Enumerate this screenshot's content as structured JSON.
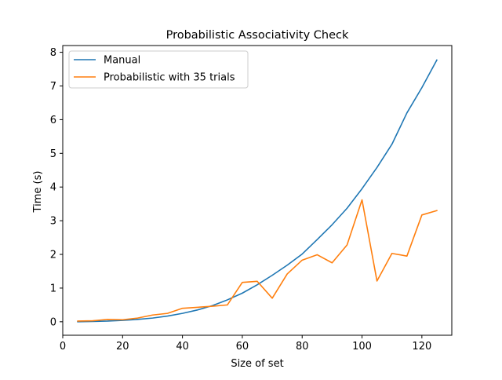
{
  "chart_data": {
    "type": "line",
    "title": "Probabilistic Associativity Check",
    "xlabel": "Size of set",
    "ylabel": "Time (s)",
    "xlim": [
      0,
      130
    ],
    "ylim": [
      -0.4,
      8.2
    ],
    "xticks": [
      0,
      20,
      40,
      60,
      80,
      100,
      120
    ],
    "yticks": [
      0,
      1,
      2,
      3,
      4,
      5,
      6,
      7,
      8
    ],
    "grid": false,
    "legend_position": "top-left",
    "x": [
      5,
      10,
      15,
      20,
      25,
      30,
      35,
      40,
      45,
      50,
      55,
      60,
      65,
      70,
      75,
      80,
      85,
      90,
      95,
      100,
      105,
      110,
      115,
      120,
      125
    ],
    "series": [
      {
        "name": "Manual",
        "color": "#1f77b4",
        "values": [
          0.0,
          0.01,
          0.02,
          0.04,
          0.07,
          0.11,
          0.17,
          0.25,
          0.35,
          0.48,
          0.65,
          0.85,
          1.1,
          1.38,
          1.68,
          2.01,
          2.44,
          2.88,
          3.37,
          3.95,
          4.58,
          5.27,
          6.2,
          6.95,
          7.77
        ]
      },
      {
        "name": "Probabilistic with 35 trials",
        "color": "#ff7f0e",
        "values": [
          0.02,
          0.03,
          0.07,
          0.06,
          0.11,
          0.2,
          0.25,
          0.4,
          0.43,
          0.46,
          0.5,
          1.17,
          1.2,
          0.7,
          1.42,
          1.83,
          1.99,
          1.75,
          2.28,
          3.62,
          1.21,
          2.03,
          1.95,
          3.17,
          3.3
        ]
      }
    ]
  }
}
